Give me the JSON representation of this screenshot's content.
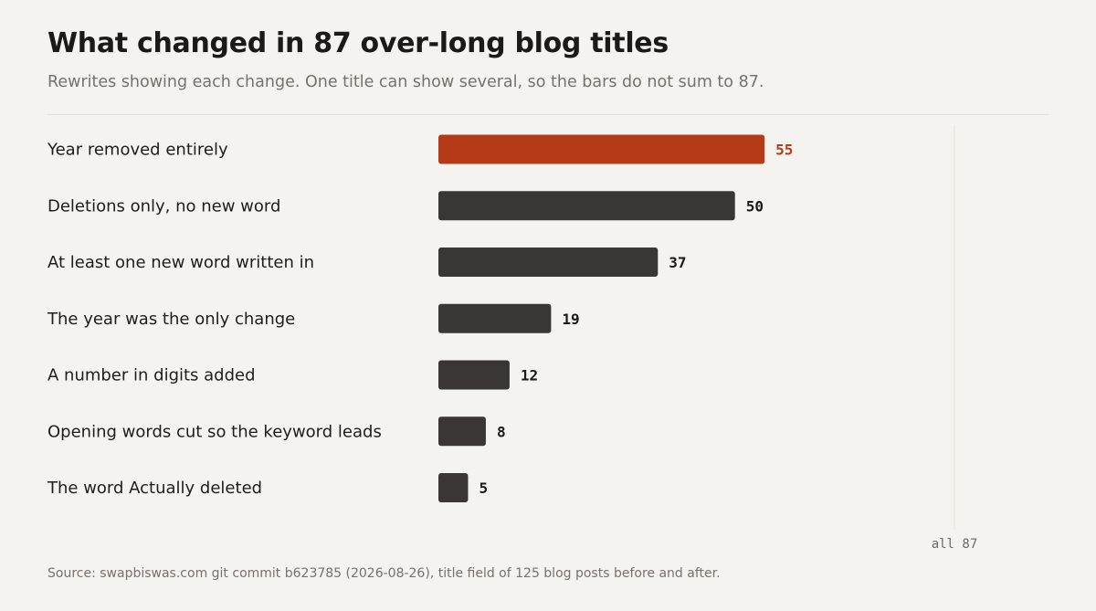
{
  "header": {
    "title": "What changed in 87 over-long blog titles",
    "subtitle": "Rewrites showing each change. One title can show several, so the bars do not sum to 87."
  },
  "footer": {
    "source": "Source: swapbiswas.com git commit b623785 (2026-08-26), title field of 125 blog posts before and after."
  },
  "colors": {
    "highlight": "#b53a17",
    "bar": "#3a3633",
    "reference_line": "#ece8d6"
  },
  "chart_data": {
    "type": "bar",
    "orientation": "horizontal",
    "title": "What changed in 87 over-long blog titles",
    "subtitle": "Rewrites showing each change. One title can show several, so the bars do not sum to 87.",
    "categories": [
      "Year removed entirely",
      "Deletions only, no new word",
      "At least one new word written in",
      "The year was the only change",
      "A number in digits added",
      "Opening words cut so the keyword leads",
      "The word Actually deleted"
    ],
    "values": [
      55,
      50,
      37,
      19,
      12,
      8,
      5
    ],
    "value_labels": [
      "55",
      "50",
      "37",
      "19",
      "12",
      "8",
      "5"
    ],
    "highlight_index": 0,
    "xlim": [
      0,
      87
    ],
    "reference_line": {
      "value": 87,
      "label": "all 87"
    },
    "grid": false,
    "legend": "none"
  }
}
